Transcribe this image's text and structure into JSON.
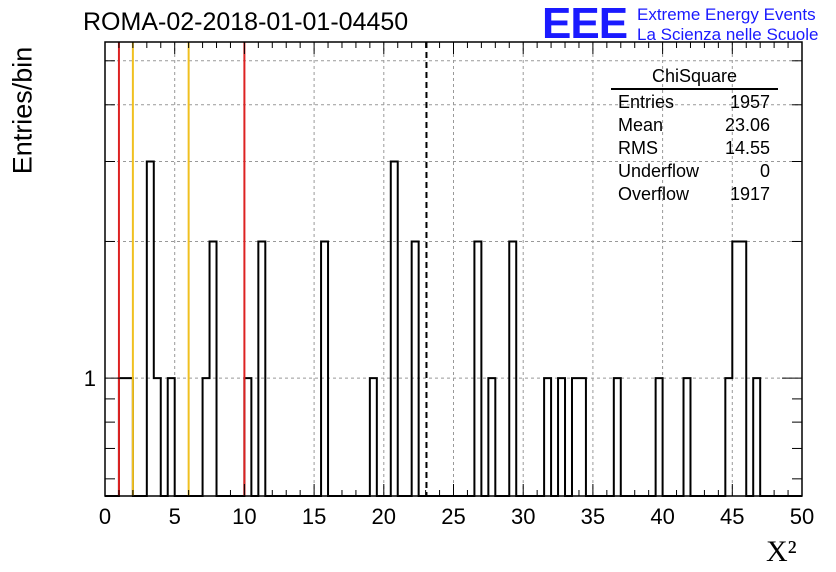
{
  "chart_data": {
    "type": "bar",
    "title": "ROMA-02-2018-01-01-04450",
    "xlabel": "X²",
    "ylabel": "Entries/bin",
    "xlim": [
      0,
      50
    ],
    "ylim": [
      0.55,
      5.5
    ],
    "yscale": "log",
    "grid": true,
    "x_ticks": [
      0,
      5,
      10,
      15,
      20,
      25,
      30,
      35,
      40,
      45,
      50
    ],
    "y_tick_labels": [
      {
        "value": 1,
        "label": "1"
      }
    ],
    "bin_width": 0.5,
    "bins": [
      {
        "x": 1.0,
        "count": 1
      },
      {
        "x": 1.5,
        "count": 1
      },
      {
        "x": 3.0,
        "count": 3
      },
      {
        "x": 3.5,
        "count": 1
      },
      {
        "x": 4.5,
        "count": 1
      },
      {
        "x": 7.0,
        "count": 1
      },
      {
        "x": 7.5,
        "count": 2
      },
      {
        "x": 10.0,
        "count": 1
      },
      {
        "x": 11.0,
        "count": 2
      },
      {
        "x": 15.5,
        "count": 2
      },
      {
        "x": 19.0,
        "count": 1
      },
      {
        "x": 20.5,
        "count": 3
      },
      {
        "x": 22.0,
        "count": 2
      },
      {
        "x": 26.5,
        "count": 2
      },
      {
        "x": 27.5,
        "count": 1
      },
      {
        "x": 29.0,
        "count": 2
      },
      {
        "x": 31.5,
        "count": 1
      },
      {
        "x": 32.5,
        "count": 1
      },
      {
        "x": 33.5,
        "count": 1
      },
      {
        "x": 34.0,
        "count": 1
      },
      {
        "x": 36.5,
        "count": 1
      },
      {
        "x": 39.5,
        "count": 1
      },
      {
        "x": 41.5,
        "count": 1
      },
      {
        "x": 44.5,
        "count": 1
      },
      {
        "x": 45.0,
        "count": 2
      },
      {
        "x": 45.5,
        "count": 2
      },
      {
        "x": 46.5,
        "count": 1
      }
    ],
    "vertical_lines": [
      {
        "x": 1,
        "color": "#dd2222",
        "style": "solid"
      },
      {
        "x": 2,
        "color": "#f0c020",
        "style": "solid"
      },
      {
        "x": 6,
        "color": "#f0c020",
        "style": "solid"
      },
      {
        "x": 10,
        "color": "#dd2222",
        "style": "solid"
      },
      {
        "x": 23.06,
        "color": "#000000",
        "style": "dashed"
      }
    ],
    "stats_box": {
      "title": "ChiSquare",
      "rows": [
        {
          "label": "Entries",
          "value": "1957"
        },
        {
          "label": "Mean",
          "value": "23.06"
        },
        {
          "label": "RMS",
          "value": "14.55"
        },
        {
          "label": "Underflow",
          "value": "0"
        },
        {
          "label": "Overflow",
          "value": "1917"
        }
      ]
    }
  },
  "logo": {
    "text": "EEE",
    "line1": "Extreme Energy Events",
    "line2": "La Scienza nelle Scuole"
  }
}
